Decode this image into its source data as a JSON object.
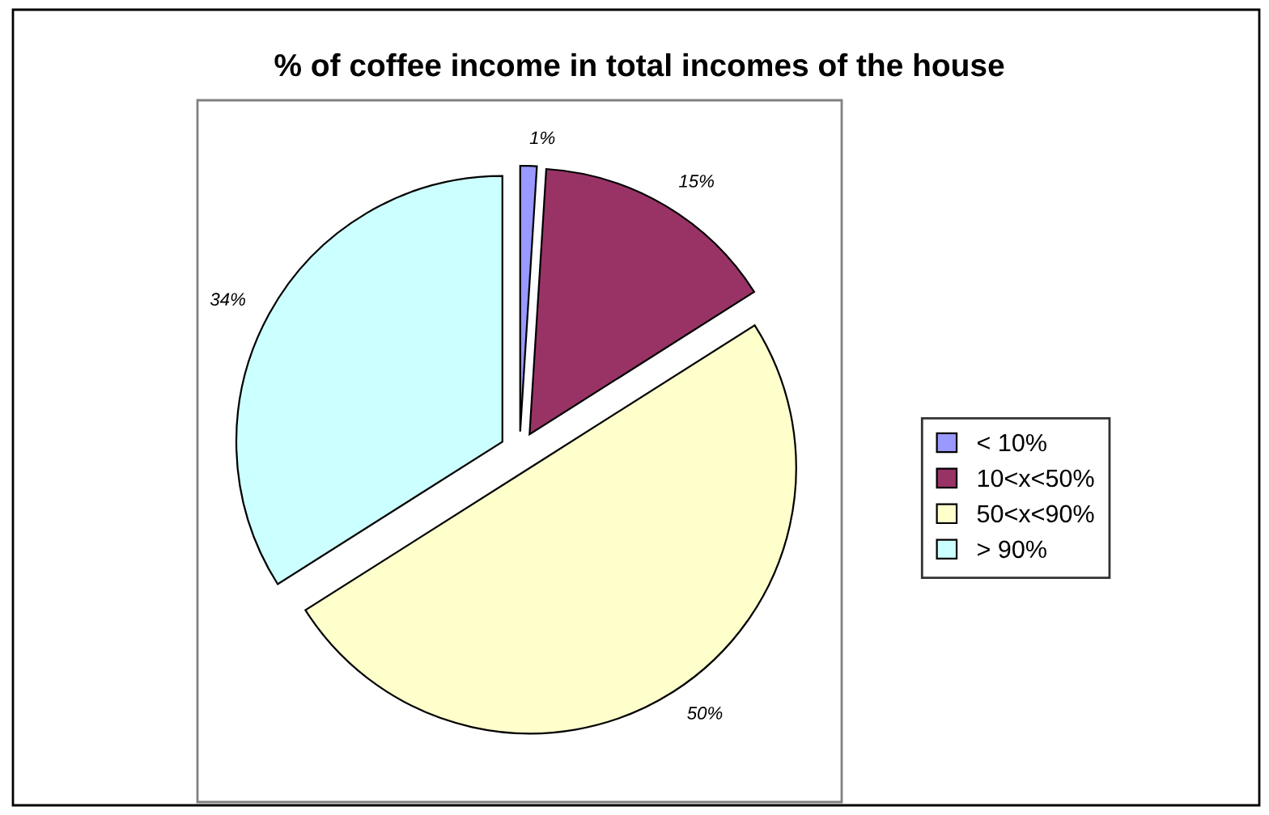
{
  "chart_data": {
    "type": "pie",
    "title": "% of coffee income in total incomes of the house",
    "categories": [
      "< 10%",
      "10<x<50%",
      "50<x<90%",
      "> 90%"
    ],
    "values": [
      1,
      15,
      50,
      34
    ],
    "value_labels": [
      "1%",
      "15%",
      "50%",
      "34%"
    ],
    "colors": [
      "#9999ff",
      "#993366",
      "#ffffcc",
      "#ccffff"
    ],
    "legend": "right"
  }
}
